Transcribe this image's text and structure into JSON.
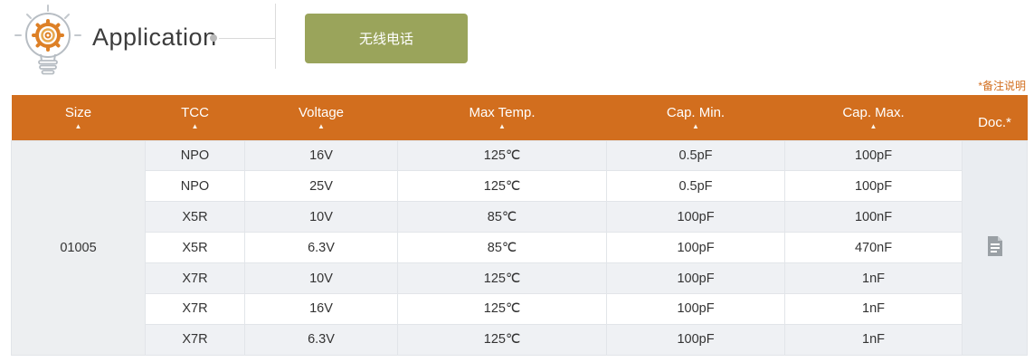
{
  "header": {
    "title": "Application",
    "button_label": "无线电话"
  },
  "note": {
    "label": "*备注说明"
  },
  "colors": {
    "header_bg": "#d26e1e",
    "button_bg": "#9aa45b",
    "note_text": "#d26e1e",
    "stripe_row": "#eff1f4"
  },
  "icons": {
    "title_icon": "lightbulb-gear-icon",
    "doc_icon": "document-icon",
    "sort_icon": "sort-ascending-caret"
  },
  "table": {
    "columns": [
      {
        "label": "Size",
        "sortable": true
      },
      {
        "label": "TCC",
        "sortable": true
      },
      {
        "label": "Voltage",
        "sortable": true
      },
      {
        "label": "Max Temp.",
        "sortable": true
      },
      {
        "label": "Cap. Min.",
        "sortable": true
      },
      {
        "label": "Cap. Max.",
        "sortable": true
      },
      {
        "label": "Doc.*",
        "sortable": false
      }
    ],
    "sort_caret_glyph": "▲",
    "size_value": "01005",
    "rows": [
      {
        "tcc": "NPO",
        "voltage": "16V",
        "max_temp": "125℃",
        "cap_min": "0.5pF",
        "cap_max": "100pF"
      },
      {
        "tcc": "NPO",
        "voltage": "25V",
        "max_temp": "125℃",
        "cap_min": "0.5pF",
        "cap_max": "100pF"
      },
      {
        "tcc": "X5R",
        "voltage": "10V",
        "max_temp": "85℃",
        "cap_min": "100pF",
        "cap_max": "100nF"
      },
      {
        "tcc": "X5R",
        "voltage": "6.3V",
        "max_temp": "85℃",
        "cap_min": "100pF",
        "cap_max": "470nF"
      },
      {
        "tcc": "X7R",
        "voltage": "10V",
        "max_temp": "125℃",
        "cap_min": "100pF",
        "cap_max": "1nF"
      },
      {
        "tcc": "X7R",
        "voltage": "16V",
        "max_temp": "125℃",
        "cap_min": "100pF",
        "cap_max": "1nF"
      },
      {
        "tcc": "X7R",
        "voltage": "6.3V",
        "max_temp": "125℃",
        "cap_min": "100pF",
        "cap_max": "1nF"
      }
    ]
  }
}
